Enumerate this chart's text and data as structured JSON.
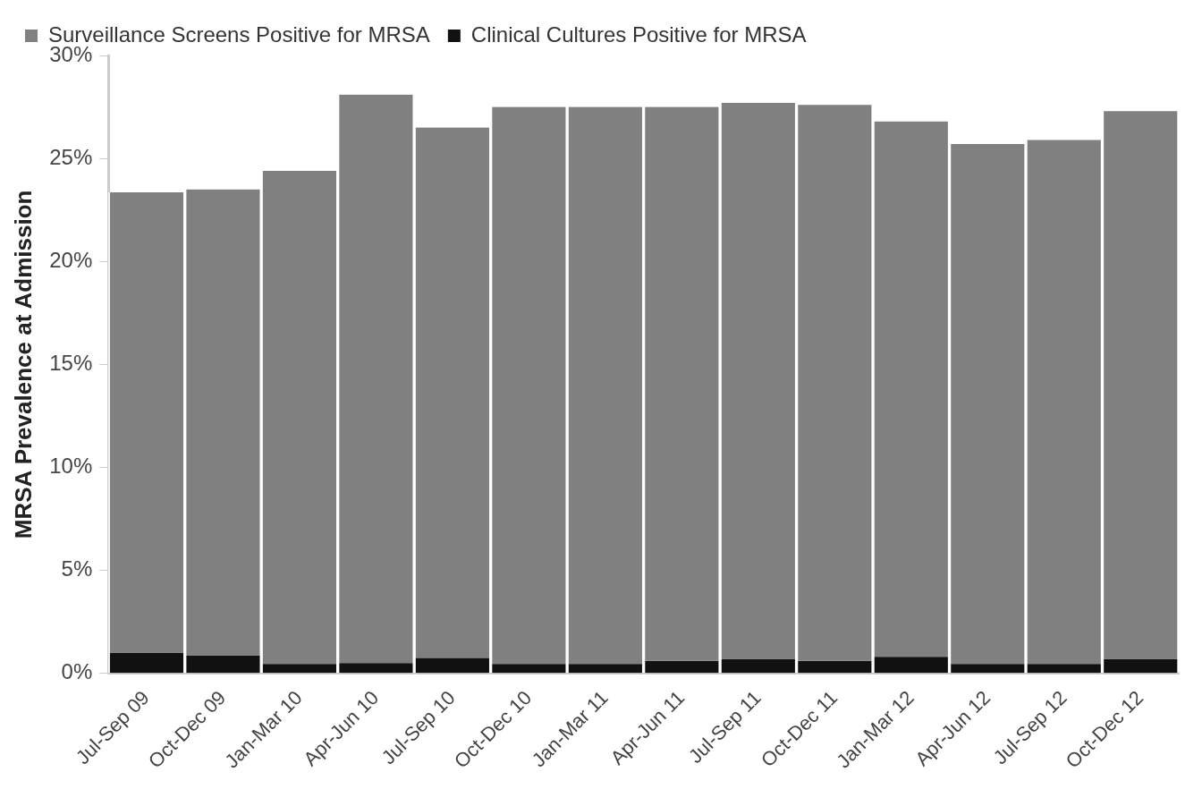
{
  "chart_data": {
    "type": "bar",
    "stacked": true,
    "ylabel": "MRSA Prevalence at Admission",
    "categories": [
      "Jul-Sep 09",
      "Oct-Dec 09",
      "Jan-Mar 10",
      "Apr-Jun 10",
      "Jul-Sep 10",
      "Oct-Dec 10",
      "Jan-Mar 11",
      "Apr-Jun 11",
      "Jul-Sep 11",
      "Oct-Dec 11",
      "Jan-Mar 12",
      "Apr-Jun 12",
      "Jul-Sep 12",
      "Oct-Dec 12"
    ],
    "series": [
      {
        "name": "Clinical Cultures Positive for MRSA",
        "color": "#111111",
        "values": [
          1.0,
          0.85,
          0.45,
          0.5,
          0.75,
          0.45,
          0.45,
          0.6,
          0.7,
          0.6,
          0.8,
          0.45,
          0.45,
          0.7
        ]
      },
      {
        "name": "Surveillance Screens Positive for MRSA",
        "color": "#808080",
        "values": [
          22.35,
          22.65,
          23.95,
          27.6,
          25.75,
          27.05,
          27.05,
          26.9,
          27.0,
          27.0,
          26.0,
          25.25,
          25.45,
          26.6
        ]
      }
    ],
    "ylim": [
      0,
      30
    ],
    "yticks": [
      {
        "value": 0,
        "label": "0%"
      },
      {
        "value": 5,
        "label": "5%"
      },
      {
        "value": 10,
        "label": "10%"
      },
      {
        "value": 15,
        "label": "15%"
      },
      {
        "value": 20,
        "label": "20%"
      },
      {
        "value": 25,
        "label": "25%"
      },
      {
        "value": 30,
        "label": "30%"
      }
    ],
    "grid": false,
    "legend": "top left"
  }
}
